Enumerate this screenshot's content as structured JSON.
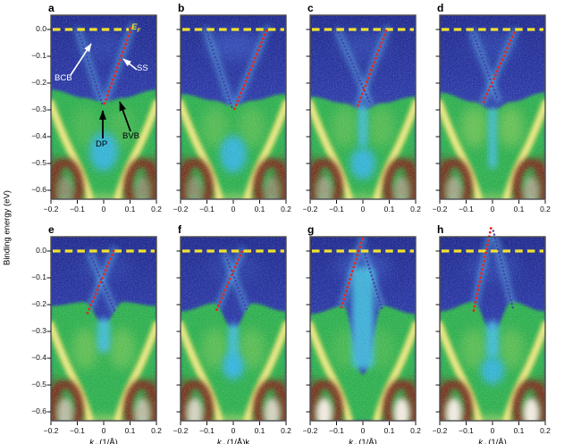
{
  "figure": {
    "y_axis_label": "Binding energy (eV)",
    "ef_label": {
      "base": "E",
      "sub": "F"
    },
    "axis_title": {
      "k": "k",
      "sub": "//"
    },
    "x_tick_labels": [
      "−0.2",
      "−0.1",
      "0",
      "0.1",
      "0.2"
    ],
    "x_tick_values": [
      -0.2,
      -0.1,
      0,
      0.1,
      0.2
    ],
    "y_tick_labels": [
      "0.0",
      "−0.1",
      "−0.2",
      "−0.3",
      "−0.4",
      "−0.5",
      "−0.6"
    ],
    "y_tick_values": [
      0,
      -0.1,
      -0.2,
      -0.3,
      -0.4,
      -0.5,
      -0.6
    ],
    "colors": {
      "background_blue": "#2c3aa8",
      "band_glow": "#58b7e6",
      "green_band": "#2daf50",
      "cyan_pocket": "#3ab4dc",
      "yellow_arm": "#e4e067",
      "brown_arch": "#7c2e1d",
      "ef_dash": "#f2e22b",
      "red_fit": "#e52620",
      "blue_fit": "#453fa9"
    }
  },
  "chart_data": [
    {
      "panel": "a",
      "type": "heatmap",
      "axis_unit": null,
      "xlim": [
        -0.2,
        0.2
      ],
      "ylim": [
        -0.62,
        0.05
      ],
      "red_line": [
        [
          0.105,
          0.005
        ],
        [
          0.0,
          -0.285
        ]
      ],
      "blue_line": [
        [
          -0.095,
          -0.01
        ],
        [
          -0.003,
          -0.285
        ]
      ],
      "dirac_point": [
        0.0,
        -0.285
      ],
      "annotations": {
        "bcb": "BCB",
        "ss": "SS",
        "dp": "DP",
        "bvb": "BVB"
      },
      "paint": {
        "green": [
          -0.225,
          -0.255,
          -0.27
        ],
        "haze": 0.3,
        "lobes": 0.2,
        "pocket": null,
        "blob": [
          0,
          -0.455,
          16,
          22
        ],
        "white": 0.3,
        "fringe": 0.45,
        "ef_end": 0.095
      }
    },
    {
      "panel": "b",
      "type": "heatmap",
      "axis_unit": null,
      "xlim": [
        -0.2,
        0.2
      ],
      "ylim": [
        -0.62,
        0.05
      ],
      "red_line": [
        [
          0.125,
          -0.005
        ],
        [
          0.003,
          -0.3
        ]
      ],
      "blue_line": [
        [
          -0.1,
          -0.01
        ],
        [
          -0.003,
          -0.295
        ]
      ],
      "paint": {
        "green": [
          -0.24,
          -0.265,
          -0.285
        ],
        "haze": 0.55,
        "lobes": 0.3,
        "pocket": null,
        "blob": [
          0,
          -0.465,
          15,
          21
        ],
        "white": 0.3,
        "fringe": 0.45,
        "ef_end": null
      }
    },
    {
      "panel": "c",
      "type": "heatmap",
      "axis_unit": null,
      "xlim": [
        -0.2,
        0.2
      ],
      "ylim": [
        -0.62,
        0.05
      ],
      "red_line": [
        [
          0.088,
          -0.005
        ],
        [
          -0.022,
          -0.292
        ]
      ],
      "blue_line": [
        [
          -0.092,
          -0.012
        ],
        [
          0.028,
          -0.278
        ]
      ],
      "paint": {
        "green": [
          -0.25,
          -0.275,
          -0.3
        ],
        "haze": 0.35,
        "lobes": 0.3,
        "pocket": [
          0.035,
          -0.28,
          -0.44
        ],
        "blob": [
          0,
          -0.5,
          14,
          18
        ],
        "white": 0.4,
        "fringe": 0.4,
        "ef_end": null
      }
    },
    {
      "panel": "d",
      "type": "heatmap",
      "axis_unit": null,
      "xlim": [
        -0.2,
        0.2
      ],
      "ylim": [
        -0.62,
        0.05
      ],
      "red_line": [
        [
          0.082,
          -0.012
        ],
        [
          -0.036,
          -0.275
        ]
      ],
      "blue_line": [
        [
          -0.073,
          -0.015
        ],
        [
          0.02,
          -0.262
        ]
      ],
      "paint": {
        "green": [
          -0.235,
          -0.27,
          -0.3
        ],
        "haze": 0.3,
        "lobes": 0.45,
        "pocket": [
          0.032,
          -0.29,
          -0.52
        ],
        "blob": null,
        "white": 0.45,
        "fringe": 0.4,
        "ef_end": null
      }
    },
    {
      "panel": "e",
      "type": "heatmap",
      "axis_unit": "(1/Å)",
      "xlim": [
        -0.2,
        0.2
      ],
      "ylim": [
        -0.62,
        0.05
      ],
      "red_line": [
        [
          0.038,
          0.0
        ],
        [
          -0.063,
          -0.235
        ]
      ],
      "blue_line": [
        [
          -0.05,
          -0.015
        ],
        [
          0.042,
          -0.225
        ]
      ],
      "paint": {
        "green": [
          -0.205,
          -0.19,
          -0.27
        ],
        "haze": 0.25,
        "lobes": 0.4,
        "pocket": [
          0.05,
          -0.25,
          -0.38
        ],
        "blob": null,
        "white": 0.6,
        "fringe": 0.5,
        "ef_end": null
      }
    },
    {
      "panel": "f",
      "type": "heatmap",
      "axis_unit": "(1/Å)k",
      "xlim": [
        -0.2,
        0.2
      ],
      "ylim": [
        -0.62,
        0.05
      ],
      "red_line": [
        [
          0.032,
          -0.003
        ],
        [
          -0.066,
          -0.225
        ]
      ],
      "blue_line": [
        [
          -0.028,
          -0.02
        ],
        [
          0.053,
          -0.225
        ]
      ],
      "paint": {
        "green": [
          -0.225,
          -0.195,
          -0.29
        ],
        "haze": 0.25,
        "lobes": 0.35,
        "pocket": [
          0.04,
          -0.27,
          -0.46
        ],
        "blob": [
          0,
          -0.43,
          12,
          15
        ],
        "white": 0.75,
        "fringe": 0.5,
        "ef_end": null
      }
    },
    {
      "panel": "g",
      "type": "heatmap",
      "axis_unit": "(1/Å)",
      "xlim": [
        -0.2,
        0.2
      ],
      "ylim": [
        -0.62,
        0.05
      ],
      "red_line": [
        [
          -0.002,
          0.045
        ],
        [
          -0.083,
          -0.215
        ]
      ],
      "blue_line": [
        [
          0.008,
          -0.012
        ],
        [
          0.072,
          -0.215
        ]
      ],
      "paint": {
        "green": [
          -0.235,
          -0.205,
          -0.46
        ],
        "haze": 0.5,
        "lobes": 0.2,
        "pocket": [
          0.085,
          -0.06,
          -0.44
        ],
        "blob": null,
        "white": 0.92,
        "fringe": 0,
        "ef_end": null
      }
    },
    {
      "panel": "h",
      "type": "heatmap",
      "axis_unit": "(1/Å)",
      "xlim": [
        -0.2,
        0.2
      ],
      "ylim": [
        -0.62,
        0.05
      ],
      "red_line": [
        [
          -0.006,
          0.085
        ],
        [
          -0.072,
          -0.225
        ]
      ],
      "blue_line": [
        [
          0.003,
          0.075
        ],
        [
          0.078,
          -0.215
        ]
      ],
      "paint": {
        "green": [
          -0.225,
          -0.19,
          -0.3
        ],
        "haze": 0.35,
        "lobes": 0.35,
        "pocket": [
          0.05,
          -0.26,
          -0.4
        ],
        "blob": [
          0,
          -0.445,
          13,
          16
        ],
        "white": 0.92,
        "fringe": 0.5,
        "ef_end": null
      }
    }
  ]
}
